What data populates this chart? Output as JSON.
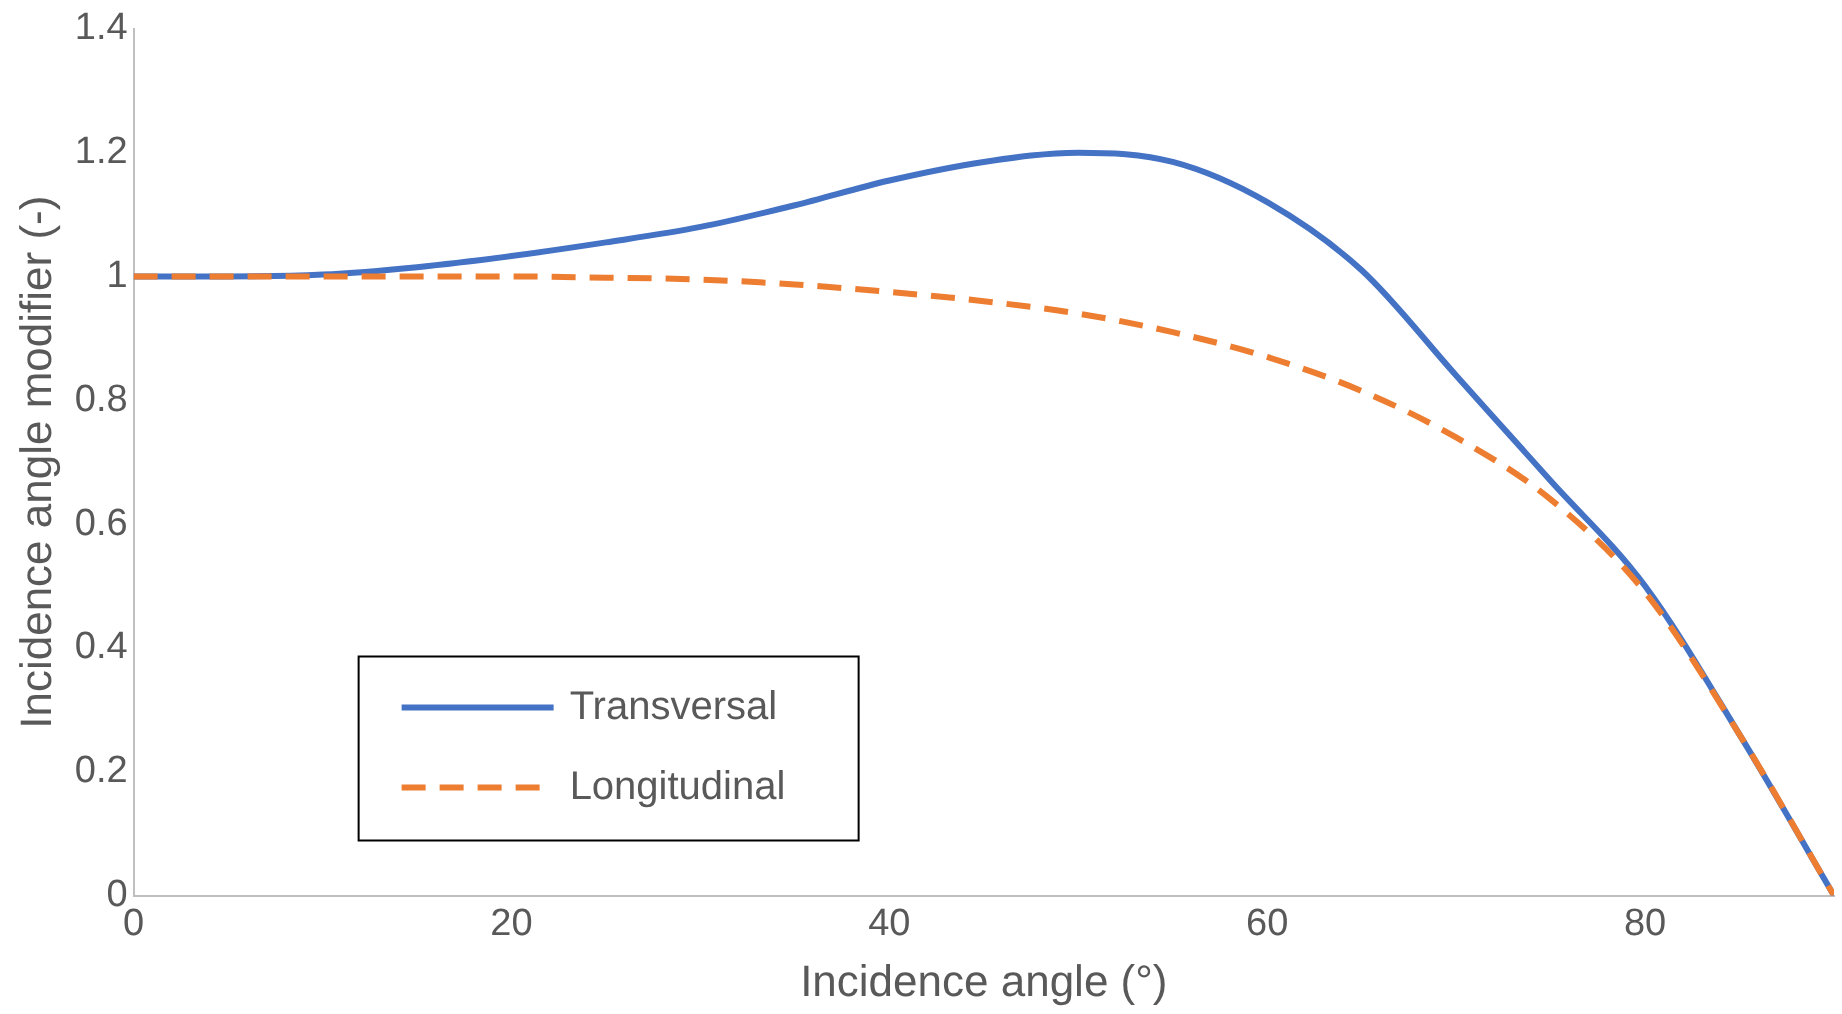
{
  "chart_data": {
    "type": "line",
    "xlabel": "Incidence angle (°)",
    "ylabel": "Incidence angle modifier (-)",
    "x": [
      0,
      5,
      10,
      15,
      20,
      25,
      30,
      35,
      40,
      45,
      50,
      55,
      60,
      65,
      70,
      75,
      80,
      85,
      90
    ],
    "series": [
      {
        "name": "Transversal",
        "color": "#4472c4",
        "line_style": "solid",
        "values": [
          1,
          1,
          1.003,
          1.015,
          1.033,
          1.055,
          1.08,
          1.115,
          1.155,
          1.185,
          1.2,
          1.185,
          1.12,
          1.01,
          0.84,
          0.67,
          0.5,
          0.26,
          0
        ]
      },
      {
        "name": "Longitudinal",
        "color": "#ed7d31",
        "line_style": "dashed",
        "values": [
          1,
          1,
          1,
          1,
          1,
          0.998,
          0.995,
          0.987,
          0.975,
          0.96,
          0.94,
          0.91,
          0.87,
          0.815,
          0.74,
          0.64,
          0.49,
          0.26,
          0
        ]
      }
    ],
    "xlim": [
      0,
      90
    ],
    "xticks": [
      0,
      20,
      40,
      60,
      80
    ],
    "ylim": [
      0,
      1.4
    ],
    "yticks": [
      0,
      0.2,
      0.4,
      0.6,
      0.8,
      1,
      1.2,
      1.4
    ],
    "grid": false,
    "legend": "bottom left",
    "marker": "none"
  }
}
